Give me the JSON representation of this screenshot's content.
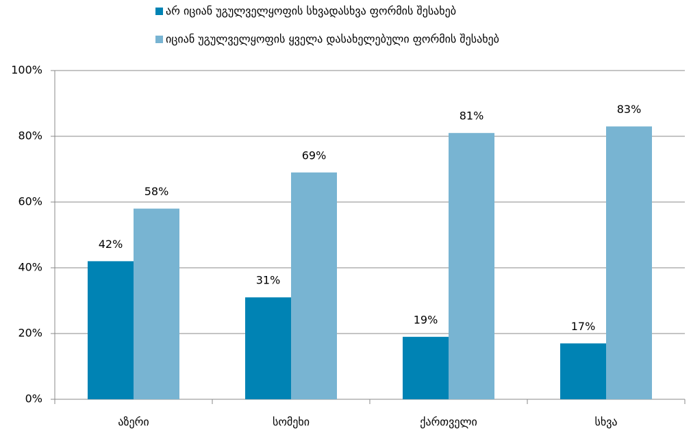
{
  "chart_data": {
    "type": "bar",
    "categories": [
      "აზერი",
      "სომეხი",
      "ქართველი",
      "სხვა"
    ],
    "series": [
      {
        "name": "არ იციან უგულველყოფის სხვადასხვა ფორმის შესახებ",
        "color": "#0083b4",
        "values": [
          42,
          31,
          19,
          17
        ],
        "value_labels": [
          "42%",
          "31%",
          "19%",
          "17%"
        ]
      },
      {
        "name": "იციან უგულველყოფის ყველა დასახელებული ფორმის შესახებ",
        "color": "#78b4d2",
        "values": [
          58,
          69,
          81,
          83
        ],
        "value_labels": [
          "58%",
          "69%",
          "81%",
          "83%"
        ]
      }
    ],
    "ylim": [
      0,
      100
    ],
    "yticks": [
      {
        "value": 0,
        "label": "0%"
      },
      {
        "value": 20,
        "label": "20%"
      },
      {
        "value": 40,
        "label": "40%"
      },
      {
        "value": 60,
        "label": "60%"
      },
      {
        "value": 80,
        "label": "80%"
      },
      {
        "value": 100,
        "label": "100%"
      }
    ],
    "grid": true,
    "legend": "top"
  }
}
